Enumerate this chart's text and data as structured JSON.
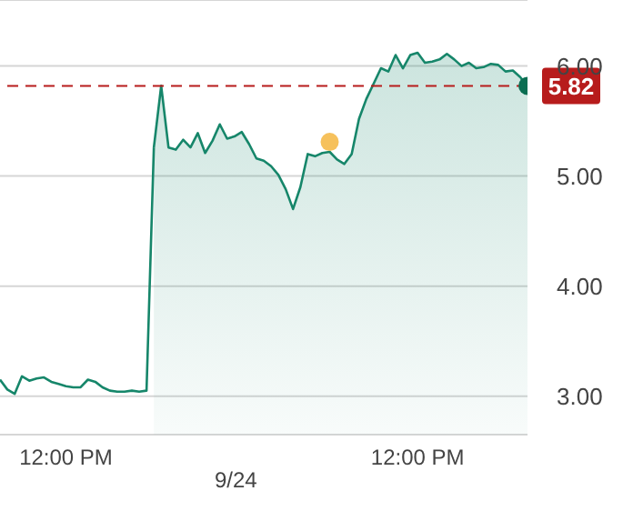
{
  "chart_data": {
    "type": "line",
    "categories": [
      null,
      null,
      null,
      null,
      null,
      null,
      null,
      null,
      null,
      "12:00 PM",
      null,
      null,
      null,
      null,
      null,
      null,
      null,
      null,
      null,
      null,
      null,
      null,
      null,
      null,
      null,
      null,
      null,
      null,
      null,
      null,
      null,
      null,
      null,
      null,
      null,
      null,
      null,
      null,
      null,
      null,
      null,
      null,
      null,
      null,
      null,
      null,
      null,
      null,
      null,
      null,
      null,
      null,
      null,
      null,
      null,
      null,
      null,
      "12:00 PM",
      null,
      null,
      null,
      null,
      null,
      null,
      null,
      null,
      null,
      null,
      null,
      null,
      null,
      null,
      null
    ],
    "ylim": [
      2.65,
      6.6
    ],
    "yticks": [
      {
        "value": 3,
        "label": "3.00"
      },
      {
        "value": 4,
        "label": "4.00"
      },
      {
        "value": 5,
        "label": "5.00"
      },
      {
        "value": 6,
        "label": "6.00"
      }
    ],
    "grid": "y",
    "annotations": [
      "9/24"
    ],
    "ref_lines": [
      {
        "axis": "y",
        "value": 5.82,
        "label": "5.82",
        "color": "#b71c1c",
        "line_style": "dashed"
      }
    ],
    "series": [
      {
        "color": "#16866a",
        "values": [
          3.15,
          3.06,
          3.02,
          3.18,
          3.14,
          3.16,
          3.17,
          3.13,
          3.11,
          3.09,
          3.08,
          3.08,
          3.15,
          3.13,
          3.08,
          3.05,
          3.04,
          3.04,
          3.05,
          3.04,
          3.05,
          5.26,
          null,
          null,
          null,
          null,
          null,
          null,
          null,
          null,
          null,
          null,
          null,
          null,
          null,
          null,
          null,
          null,
          null,
          null,
          null,
          null,
          null,
          null,
          null,
          null,
          null,
          null,
          null,
          null,
          null,
          null,
          null,
          null,
          null,
          null,
          null,
          null,
          null,
          null,
          null,
          null,
          null,
          null,
          null,
          null,
          null,
          null,
          null,
          null,
          null,
          null,
          null
        ]
      },
      {
        "type": "area",
        "color": "#16866a",
        "values": [
          null,
          null,
          null,
          null,
          null,
          null,
          null,
          null,
          null,
          null,
          null,
          null,
          null,
          null,
          null,
          null,
          null,
          null,
          null,
          null,
          null,
          5.26,
          5.82,
          5.26,
          5.24,
          5.33,
          5.26,
          5.39,
          5.21,
          5.32,
          5.47,
          5.34,
          5.36,
          5.4,
          5.29,
          5.16,
          5.14,
          5.09,
          5.01,
          4.88,
          4.7,
          4.9,
          5.2,
          5.18,
          5.21,
          5.22,
          5.15,
          5.11,
          5.2,
          5.52,
          5.7,
          5.84,
          5.98,
          5.95,
          6.1,
          5.98,
          6.1,
          6.12,
          6.03,
          6.04,
          6.06,
          6.11,
          6.06,
          6.0,
          6.03,
          5.98,
          5.99,
          6.02,
          6.01,
          5.95,
          5.96,
          5.9,
          5.82
        ]
      },
      {
        "type": "scatter",
        "color": "#f6c15c",
        "values": [
          null,
          null,
          null,
          null,
          null,
          null,
          null,
          null,
          null,
          null,
          null,
          null,
          null,
          null,
          null,
          null,
          null,
          null,
          null,
          null,
          null,
          null,
          null,
          null,
          null,
          null,
          null,
          null,
          null,
          null,
          null,
          null,
          null,
          null,
          null,
          null,
          null,
          null,
          null,
          null,
          null,
          null,
          null,
          null,
          null,
          5.31,
          null,
          null,
          null,
          null,
          null,
          null,
          null,
          null,
          null,
          null,
          null,
          null,
          null,
          null,
          null,
          null,
          null,
          null,
          null,
          null,
          null,
          null,
          null,
          null,
          null,
          null,
          null
        ]
      },
      {
        "type": "scatter",
        "color": "#0b6e52",
        "values": [
          null,
          null,
          null,
          null,
          null,
          null,
          null,
          null,
          null,
          null,
          null,
          null,
          null,
          null,
          null,
          null,
          null,
          null,
          null,
          null,
          null,
          null,
          null,
          null,
          null,
          null,
          null,
          null,
          null,
          null,
          null,
          null,
          null,
          null,
          null,
          null,
          null,
          null,
          null,
          null,
          null,
          null,
          null,
          null,
          null,
          null,
          null,
          null,
          null,
          null,
          null,
          null,
          null,
          null,
          null,
          null,
          null,
          null,
          null,
          null,
          null,
          null,
          null,
          null,
          null,
          null,
          null,
          null,
          null,
          null,
          null,
          null,
          5.82
        ]
      }
    ]
  }
}
